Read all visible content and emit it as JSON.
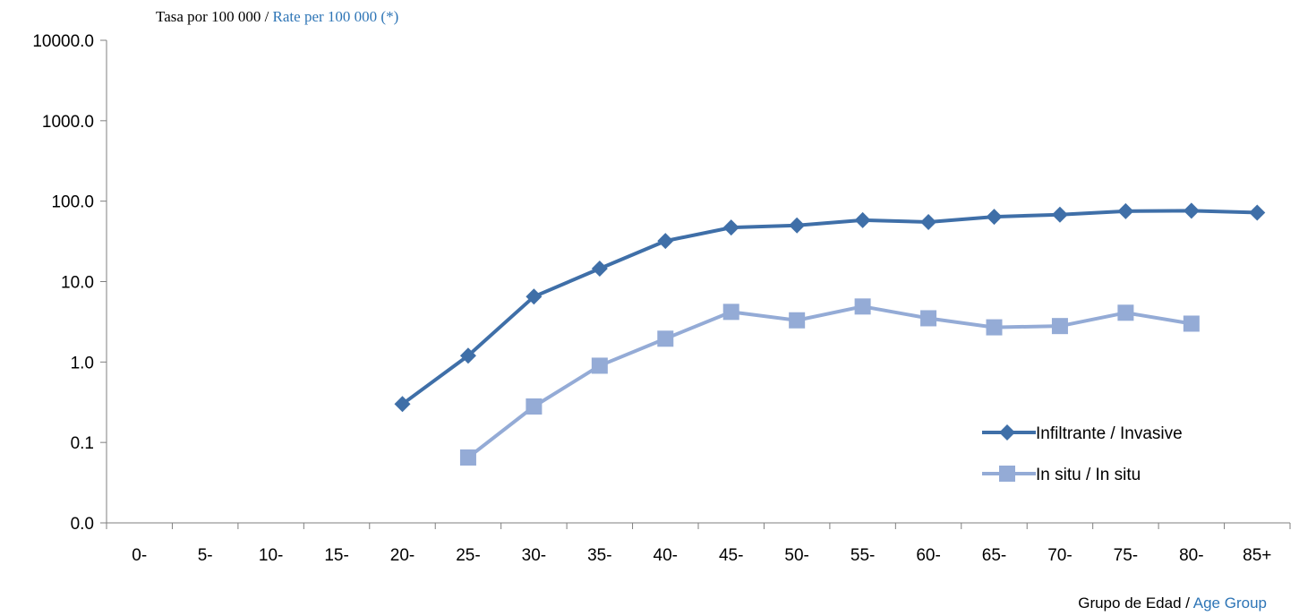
{
  "chart_data": {
    "type": "line",
    "yscale": "log",
    "ylabel_es": "Tasa por 100 000 / ",
    "ylabel_en": "Rate per 100 000 (*)",
    "xlabel_es": "Grupo de Edad / ",
    "xlabel_en": "Age Group",
    "y_ticks": [
      "0.0",
      "0.1",
      "1.0",
      "10.0",
      "100.0",
      "1000.0",
      "10000.0"
    ],
    "categories": [
      "0-",
      "5-",
      "10-",
      "15-",
      "20-",
      "25-",
      "30-",
      "35-",
      "40-",
      "45-",
      "50-",
      "55-",
      "60-",
      "65-",
      "70-",
      "75-",
      "80-",
      "85+"
    ],
    "series": [
      {
        "name": "Infiltrante / Invasive",
        "color": "#3F6FA8",
        "marker": "diamond",
        "values": [
          null,
          null,
          null,
          null,
          0.3,
          1.2,
          6.5,
          14.5,
          32,
          47,
          50,
          58,
          55,
          64,
          68,
          75,
          76,
          72
        ]
      },
      {
        "name": "In situ / In situ",
        "color": "#94ABD6",
        "marker": "square",
        "values": [
          null,
          null,
          null,
          null,
          null,
          0.065,
          0.28,
          0.9,
          1.95,
          4.2,
          3.3,
          4.9,
          3.5,
          2.7,
          2.8,
          4.1,
          3.0,
          null
        ]
      }
    ],
    "legend_position": "lower-right",
    "grid": false,
    "accent_colors": {
      "ylabel_en": "#2E75B6",
      "xlabel_en": "#2E75B6"
    }
  }
}
